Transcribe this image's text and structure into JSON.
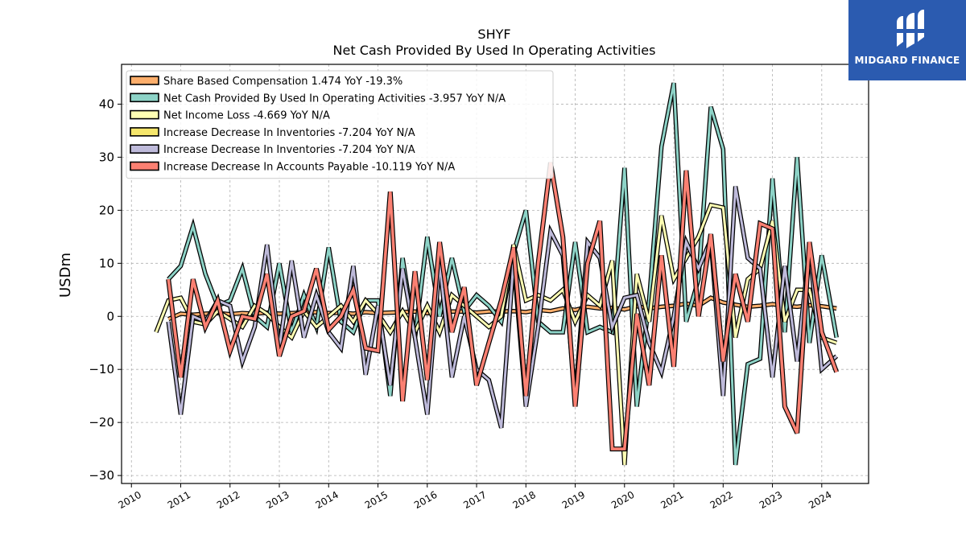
{
  "chart_data": {
    "type": "line",
    "title": "SHYF",
    "subtitle": "Net Cash Provided By Used In Operating Activities",
    "ylabel": "USDm",
    "xlabel": "",
    "xlim": [
      2009.8,
      2024.95
    ],
    "ylim": [
      -31.5,
      47.5
    ],
    "x_ticks": [
      "2010",
      "2011",
      "2012",
      "2013",
      "2014",
      "2015",
      "2016",
      "2017",
      "2018",
      "2019",
      "2020",
      "2021",
      "2022",
      "2023",
      "2024"
    ],
    "y_ticks": [
      -30,
      -20,
      -10,
      0,
      10,
      20,
      30,
      40
    ],
    "grid": true,
    "legend_position": "top-left",
    "series": [
      {
        "name": "Share Based Compensation  1.474 YoY -19.3%",
        "color": "#fdae6b",
        "x": [
          2010.75,
          2011.0,
          2011.25,
          2011.5,
          2011.75,
          2012.0,
          2012.25,
          2012.5,
          2012.75,
          2013.0,
          2013.25,
          2013.5,
          2013.75,
          2014.0,
          2014.25,
          2014.5,
          2014.75,
          2015.0,
          2015.25,
          2015.5,
          2015.75,
          2016.0,
          2016.25,
          2016.5,
          2016.75,
          2017.0,
          2017.25,
          2017.5,
          2017.75,
          2018.0,
          2018.25,
          2018.5,
          2018.75,
          2019.0,
          2019.25,
          2019.5,
          2019.75,
          2020.0,
          2020.25,
          2020.5,
          2020.75,
          2021.0,
          2021.25,
          2021.5,
          2021.75,
          2022.0,
          2022.25,
          2022.5,
          2022.75,
          2023.0,
          2023.25,
          2023.5,
          2023.75,
          2024.0,
          2024.3
        ],
        "values": [
          -0.5,
          0.5,
          0.3,
          0.5,
          0.6,
          0.4,
          0.6,
          0.5,
          0.7,
          0.5,
          0.6,
          0.7,
          0.8,
          0.6,
          0.7,
          0.5,
          0.8,
          0.6,
          0.7,
          0.8,
          0.9,
          0.6,
          0.8,
          0.9,
          0.9,
          0.7,
          0.9,
          0.9,
          1.0,
          0.8,
          1.2,
          1.0,
          1.5,
          1.2,
          1.8,
          1.5,
          1.6,
          1.3,
          1.9,
          1.5,
          1.8,
          2.0,
          2.4,
          2.0,
          3.5,
          2.6,
          2.2,
          1.8,
          2.0,
          2.3,
          2.0,
          1.8,
          2.1,
          1.9,
          1.5
        ]
      },
      {
        "name": "Net Cash Provided By Used In Operating Activities  -3.957 YoY N/A",
        "color": "#8dd3c7",
        "x": [
          2010.75,
          2011.0,
          2011.25,
          2011.5,
          2011.75,
          2012.0,
          2012.25,
          2012.5,
          2012.75,
          2013.0,
          2013.25,
          2013.5,
          2013.75,
          2014.0,
          2014.25,
          2014.5,
          2014.75,
          2015.0,
          2015.25,
          2015.5,
          2015.75,
          2016.0,
          2016.25,
          2016.5,
          2016.75,
          2017.0,
          2017.25,
          2017.5,
          2017.75,
          2018.0,
          2018.25,
          2018.5,
          2018.75,
          2019.0,
          2019.25,
          2019.5,
          2019.75,
          2020.0,
          2020.25,
          2020.5,
          2020.75,
          2021.0,
          2021.25,
          2021.5,
          2021.75,
          2022.0,
          2022.25,
          2022.5,
          2022.75,
          2023.0,
          2023.25,
          2023.5,
          2023.75,
          2024.0,
          2024.3
        ],
        "values": [
          7,
          9.5,
          17,
          8,
          2,
          3,
          9,
          0,
          -2,
          10,
          -3,
          4,
          -2,
          13,
          -1,
          -3,
          3,
          3,
          -15,
          11,
          -4,
          15,
          0,
          11,
          1,
          4,
          2,
          -1,
          12,
          20,
          -1,
          -3,
          -3,
          14,
          -3,
          -2,
          -3,
          28,
          -17,
          3,
          32,
          44,
          -1,
          7,
          39.5,
          31.5,
          -28,
          -9,
          -8,
          26,
          -3,
          30,
          -5,
          11.5,
          -4
        ]
      },
      {
        "name": "Net Income Loss  -4.669 YoY N/A",
        "color": "#ffffb3",
        "x": [
          2010.5,
          2010.75,
          2011.0,
          2011.25,
          2011.5,
          2011.75,
          2012.0,
          2012.25,
          2012.5,
          2012.75,
          2013.0,
          2013.25,
          2013.5,
          2013.75,
          2014.0,
          2014.25,
          2014.5,
          2014.75,
          2015.0,
          2015.25,
          2015.5,
          2015.75,
          2016.0,
          2016.25,
          2016.5,
          2016.75,
          2017.0,
          2017.25,
          2017.5,
          2017.75,
          2018.0,
          2018.25,
          2018.5,
          2018.75,
          2019.0,
          2019.25,
          2019.5,
          2019.75,
          2020.0,
          2020.25,
          2020.5,
          2020.75,
          2021.0,
          2021.25,
          2021.5,
          2021.75,
          2022.0,
          2022.25,
          2022.5,
          2022.75,
          2023.0,
          2023.25,
          2023.5,
          2023.75,
          2024.0,
          2024.3
        ],
        "values": [
          -3,
          3,
          3.5,
          -1,
          -1.5,
          1,
          -0.5,
          -2,
          2,
          0.5,
          -2,
          -4,
          1,
          -2,
          0,
          2,
          -1,
          3,
          0.5,
          -3,
          1,
          -3,
          2,
          -3,
          4,
          2,
          0,
          -2,
          0,
          13.5,
          3,
          4,
          3,
          5,
          -1,
          4,
          2,
          10.5,
          -28,
          8,
          -1,
          19,
          7,
          11,
          15,
          21,
          20.5,
          -4,
          7,
          9,
          18,
          -1,
          5,
          5,
          -4,
          -5
        ]
      },
      {
        "name": "Increase Decrease In Inventories  -7.204 YoY N/A",
        "color": "#f5e66c",
        "x": [],
        "values": []
      },
      {
        "name": "Increase Decrease In Inventories  -7.204 YoY N/A",
        "color": "#bebada",
        "x": [
          2010.75,
          2011.0,
          2011.25,
          2011.5,
          2011.75,
          2012.0,
          2012.25,
          2012.5,
          2012.75,
          2013.0,
          2013.25,
          2013.5,
          2013.75,
          2014.0,
          2014.25,
          2014.5,
          2014.75,
          2015.0,
          2015.25,
          2015.5,
          2015.75,
          2016.0,
          2016.25,
          2016.5,
          2016.75,
          2017.0,
          2017.25,
          2017.5,
          2017.75,
          2018.0,
          2018.25,
          2018.5,
          2018.75,
          2019.0,
          2019.25,
          2019.5,
          2019.75,
          2020.0,
          2020.25,
          2020.5,
          2020.75,
          2021.0,
          2021.25,
          2021.5,
          2021.75,
          2022.0,
          2022.25,
          2022.5,
          2022.75,
          2023.0,
          2023.25,
          2023.5,
          2023.75,
          2024.0,
          2024.3
        ],
        "values": [
          -1,
          -18.5,
          0,
          -1,
          3,
          2,
          -8.5,
          -2,
          13.5,
          -6,
          10.5,
          -4,
          4,
          -3,
          -6,
          9.5,
          -11,
          2,
          -13,
          9,
          -4,
          -18.5,
          10,
          -11.5,
          0,
          -10,
          -12,
          -21,
          10.5,
          -17,
          -2,
          16,
          11.5,
          -15.5,
          14,
          11,
          -2,
          3.5,
          4,
          -5,
          -10.5,
          0,
          14,
          9,
          14.5,
          -15,
          24.5,
          11,
          9,
          -11.5,
          9.5,
          -8.5,
          13,
          -10,
          -7.5
        ]
      },
      {
        "name": "Increase Decrease In Accounts Payable  -10.119 YoY N/A",
        "color": "#fb8072",
        "x": [
          2010.75,
          2011.0,
          2011.25,
          2011.5,
          2011.75,
          2012.0,
          2012.25,
          2012.5,
          2012.75,
          2013.0,
          2013.25,
          2013.5,
          2013.75,
          2014.0,
          2014.25,
          2014.5,
          2014.75,
          2015.0,
          2015.25,
          2015.5,
          2015.75,
          2016.0,
          2016.25,
          2016.5,
          2016.75,
          2017.0,
          2017.25,
          2017.5,
          2017.75,
          2018.0,
          2018.25,
          2018.5,
          2018.75,
          2019.0,
          2019.25,
          2019.5,
          2019.75,
          2020.0,
          2020.25,
          2020.5,
          2020.75,
          2021.0,
          2021.25,
          2021.5,
          2021.75,
          2022.0,
          2022.25,
          2022.5,
          2022.75,
          2023.0,
          2023.25,
          2023.5,
          2023.75,
          2024.0,
          2024.3
        ],
        "values": [
          7,
          -11.5,
          7,
          -2,
          3,
          -6.5,
          0,
          -0.5,
          8,
          -7.5,
          0,
          1,
          9,
          -2.5,
          0,
          5,
          -6,
          -6.5,
          23.5,
          -16,
          8.5,
          -12,
          14,
          -3,
          5.5,
          -13,
          -5,
          3,
          13,
          -15,
          10,
          29,
          15,
          -17,
          10,
          18,
          -25,
          -25,
          0.5,
          -13,
          11.5,
          -9.5,
          27.5,
          0,
          15.5,
          -8.5,
          8,
          -1,
          17.5,
          16.5,
          -17,
          -22,
          14,
          -3,
          -10.5
        ]
      }
    ]
  },
  "logo": {
    "text": "MIDGARD FINANCE",
    "bg_color": "#2b5bb0"
  }
}
